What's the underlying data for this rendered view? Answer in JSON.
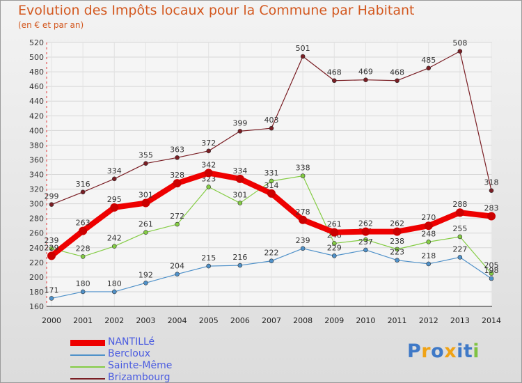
{
  "header": {
    "title": "Evolution des Impôts locaux pour la Commune par Habitant",
    "subtitle": "(en € et par an)"
  },
  "chart_data": {
    "type": "line",
    "x": [
      "2000",
      "2001",
      "2002",
      "2003",
      "2004",
      "2005",
      "2006",
      "2007",
      "2008",
      "2009",
      "2010",
      "2011",
      "2012",
      "2013",
      "2014"
    ],
    "y_ticks": [
      160,
      180,
      200,
      220,
      240,
      260,
      280,
      300,
      320,
      340,
      360,
      380,
      400,
      420,
      440,
      460,
      480,
      500,
      520
    ],
    "ylim": [
      160,
      520
    ],
    "series": [
      {
        "name": "NANTILLé",
        "color": "#ee0000",
        "values": [
          229,
          263,
          295,
          301,
          328,
          342,
          334,
          314,
          278,
          261,
          262,
          262,
          270,
          288,
          283
        ]
      },
      {
        "name": "Bercloux",
        "color": "#4f91c9",
        "values": [
          171,
          180,
          180,
          192,
          204,
          215,
          216,
          222,
          239,
          229,
          237,
          223,
          218,
          227,
          198
        ]
      },
      {
        "name": "Sainte-Même",
        "color": "#84cc44",
        "values": [
          239,
          228,
          242,
          261,
          272,
          323,
          301,
          331,
          338,
          246,
          251,
          238,
          248,
          255,
          205
        ]
      },
      {
        "name": "Brizambourg",
        "color": "#7a1e24",
        "values": [
          299,
          316,
          334,
          355,
          363,
          372,
          399,
          403,
          501,
          468,
          469,
          468,
          485,
          508,
          318
        ]
      }
    ]
  },
  "legend": {
    "items": [
      {
        "label": "NANTILLé",
        "color": "#ee0000"
      },
      {
        "label": "Bercloux",
        "color": "#4f91c9"
      },
      {
        "label": "Sainte-Même",
        "color": "#84cc44"
      },
      {
        "label": "Brizambourg",
        "color": "#7a1e24"
      }
    ]
  },
  "brand": {
    "letters": [
      "P",
      "r",
      "o",
      "x",
      "i",
      "t",
      "i"
    ],
    "colors": [
      "#3f79c7",
      "#f0a316",
      "#3f79c7",
      "#f0a316",
      "#3f79c7",
      "#3f79c7",
      "#7fc242"
    ]
  }
}
